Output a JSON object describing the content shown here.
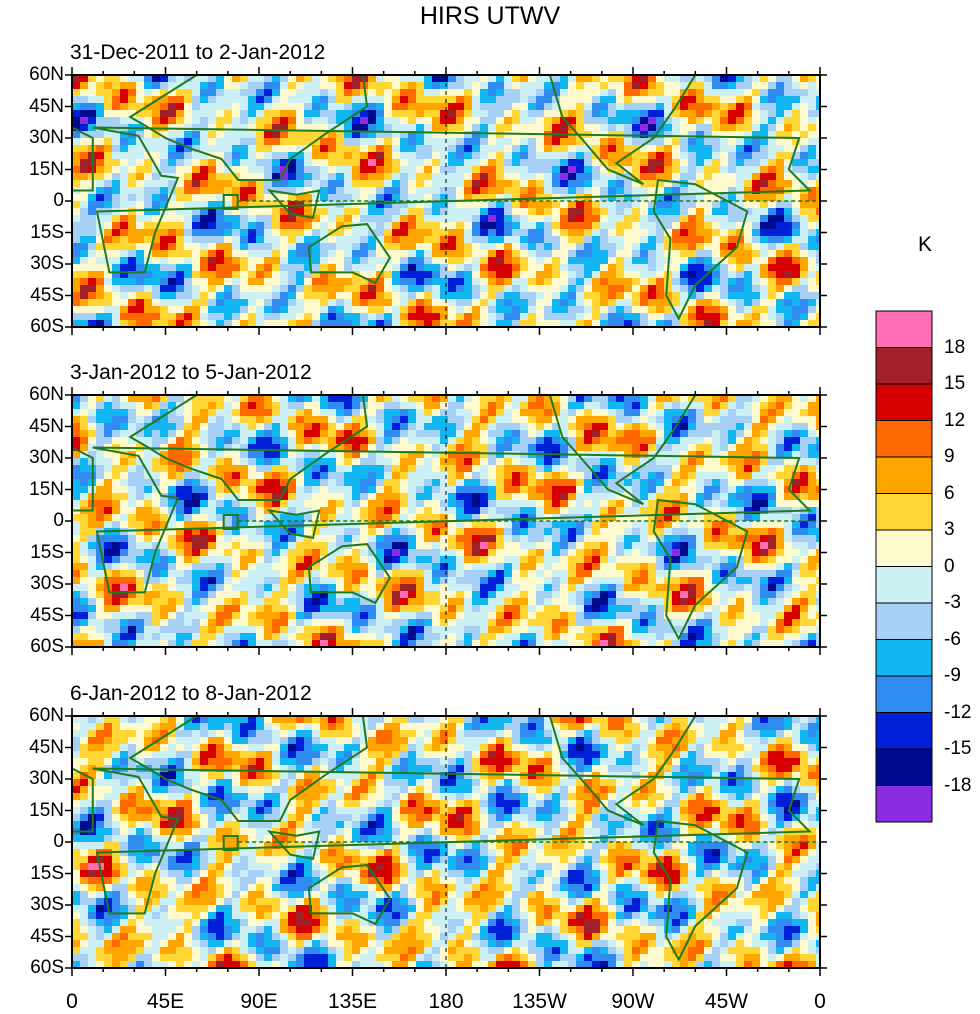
{
  "chart_data": {
    "type": "heatmap",
    "title": "HIRS UTWV",
    "panels": [
      {
        "subtitle": "31-Dec-2011 to 2-Jan-2012"
      },
      {
        "subtitle": "3-Jan-2012 to 5-Jan-2012"
      },
      {
        "subtitle": "6-Jan-2012 to 8-Jan-2012"
      }
    ],
    "y_ticks": [
      "60N",
      "45N",
      "30N",
      "15N",
      "0",
      "15S",
      "30S",
      "45S",
      "60S"
    ],
    "x_ticks": [
      "0",
      "45E",
      "90E",
      "135E",
      "180",
      "135W",
      "90W",
      "45W",
      "0"
    ],
    "xlim": [
      0,
      360
    ],
    "ylim": [
      -60,
      60
    ],
    "colorbar": {
      "unit": "K",
      "levels": [
        "18",
        "15",
        "12",
        "9",
        "6",
        "3",
        "0",
        "-3",
        "-6",
        "-9",
        "-12",
        "-15",
        "-18"
      ],
      "colors": [
        "#ff6eb4",
        "#a0202a",
        "#d60000",
        "#ff6a00",
        "#ffa500",
        "#ffd633",
        "#fffacd",
        "#cdf0f5",
        "#a6d0f5",
        "#12b6f0",
        "#2f8bef",
        "#0020d8",
        "#000b90",
        "#8b2be2"
      ]
    },
    "colors": {
      "coastline": "#1e7b1e",
      "equator": "#1e7b1e",
      "dateline": "#000000"
    }
  }
}
